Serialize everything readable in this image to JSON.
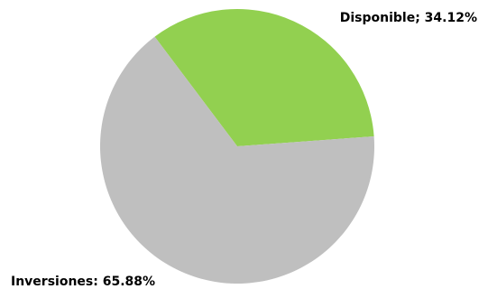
{
  "chart_data": {
    "type": "pie",
    "slices": [
      {
        "category": "Disponible",
        "value": 34.12,
        "label": "Disponible; 34.12%",
        "color": "#92d050"
      },
      {
        "category": "Inversiones",
        "value": 65.88,
        "label": "Inversiones: 65.88%",
        "color": "#bfbfbf"
      }
    ],
    "start_angle_deg": -37,
    "direction": "clockwise",
    "legend": "none",
    "data_labels": "outside"
  }
}
